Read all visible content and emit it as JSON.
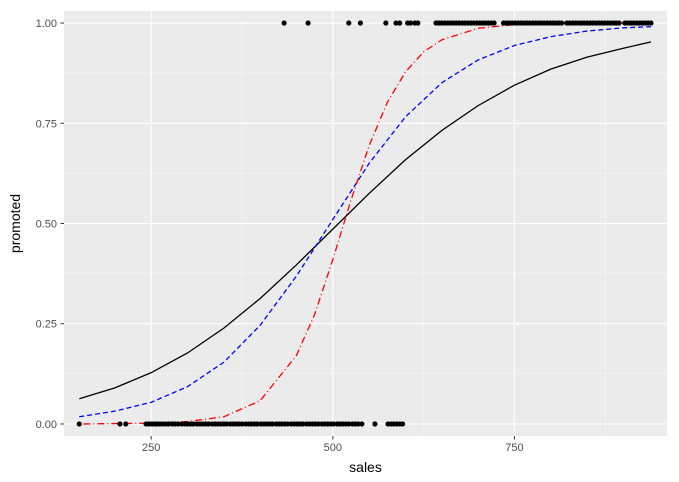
{
  "chart_data": {
    "type": "scatter",
    "title": "",
    "xlabel": "sales",
    "ylabel": "promoted",
    "xlim": [
      130,
      960
    ],
    "ylim": [
      -0.03,
      1.03
    ],
    "x_ticks": [
      250,
      500,
      750
    ],
    "x_tick_labels": [
      "250",
      "500",
      "750"
    ],
    "y_ticks": [
      0,
      0.25,
      0.5,
      0.75,
      1
    ],
    "y_tick_labels": [
      "0.00",
      "0.25",
      "0.50",
      "0.75",
      "1.00"
    ],
    "grid": true,
    "background": "#ebebeb",
    "grid_major_color": "#ffffff",
    "legend": "none",
    "points": {
      "color": "#000000",
      "y0_x": [
        151,
        207,
        215,
        243,
        247,
        251,
        255,
        258,
        262,
        266,
        270,
        274,
        279,
        283,
        287,
        292,
        296,
        300,
        304,
        308,
        313,
        317,
        321,
        325,
        329,
        334,
        338,
        342,
        346,
        350,
        354,
        359,
        363,
        367,
        371,
        375,
        380,
        384,
        388,
        392,
        396,
        401,
        405,
        409,
        413,
        417,
        422,
        426,
        430,
        434,
        438,
        443,
        447,
        451,
        455,
        459,
        464,
        468,
        472,
        476,
        480,
        485,
        489,
        493,
        497,
        501,
        506,
        510,
        514,
        518,
        522,
        527,
        531,
        535,
        540,
        558,
        576,
        580,
        584,
        588,
        592,
        596
      ],
      "y1_x": [
        433,
        466,
        522,
        538,
        573,
        587,
        592,
        603,
        607,
        613,
        617,
        642,
        646,
        650,
        654,
        658,
        662,
        666,
        670,
        674,
        678,
        682,
        686,
        690,
        694,
        698,
        702,
        706,
        710,
        714,
        718,
        722,
        735,
        739,
        743,
        747,
        751,
        755,
        759,
        763,
        767,
        771,
        775,
        779,
        783,
        787,
        791,
        795,
        799,
        803,
        807,
        811,
        815,
        822,
        826,
        830,
        834,
        838,
        842,
        846,
        850,
        854,
        858,
        862,
        866,
        870,
        874,
        878,
        882,
        886,
        890,
        894,
        902,
        906,
        910,
        914,
        918,
        922,
        926,
        930,
        934,
        938
      ]
    },
    "series": [
      {
        "style": "solid",
        "color": "#000000",
        "x": [
          151,
          200,
          250,
          300,
          350,
          400,
          450,
          500,
          550,
          600,
          650,
          700,
          750,
          800,
          850,
          900,
          938
        ],
        "values": [
          0.063,
          0.09,
          0.128,
          0.177,
          0.239,
          0.313,
          0.397,
          0.486,
          0.575,
          0.659,
          0.732,
          0.794,
          0.845,
          0.885,
          0.915,
          0.937,
          0.953
        ]
      },
      {
        "style": "dashed",
        "color": "#0000ff",
        "x": [
          151,
          200,
          250,
          300,
          350,
          400,
          450,
          500,
          550,
          600,
          650,
          700,
          750,
          800,
          850,
          900,
          938
        ],
        "values": [
          0.018,
          0.032,
          0.054,
          0.093,
          0.154,
          0.246,
          0.369,
          0.51,
          0.65,
          0.766,
          0.851,
          0.908,
          0.944,
          0.966,
          0.98,
          0.988,
          0.991
        ]
      },
      {
        "style": "dotdash",
        "color": "#ff0000",
        "x": [
          151,
          200,
          250,
          300,
          350,
          400,
          450,
          475,
          500,
          525,
          550,
          575,
          600,
          625,
          650,
          700,
          750,
          800,
          850,
          900,
          938
        ],
        "values": [
          0.0,
          0.001,
          0.002,
          0.006,
          0.018,
          0.058,
          0.171,
          0.273,
          0.41,
          0.558,
          0.694,
          0.802,
          0.878,
          0.928,
          0.958,
          0.987,
          0.996,
          0.999,
          1.0,
          1.0,
          1.0
        ]
      }
    ]
  }
}
